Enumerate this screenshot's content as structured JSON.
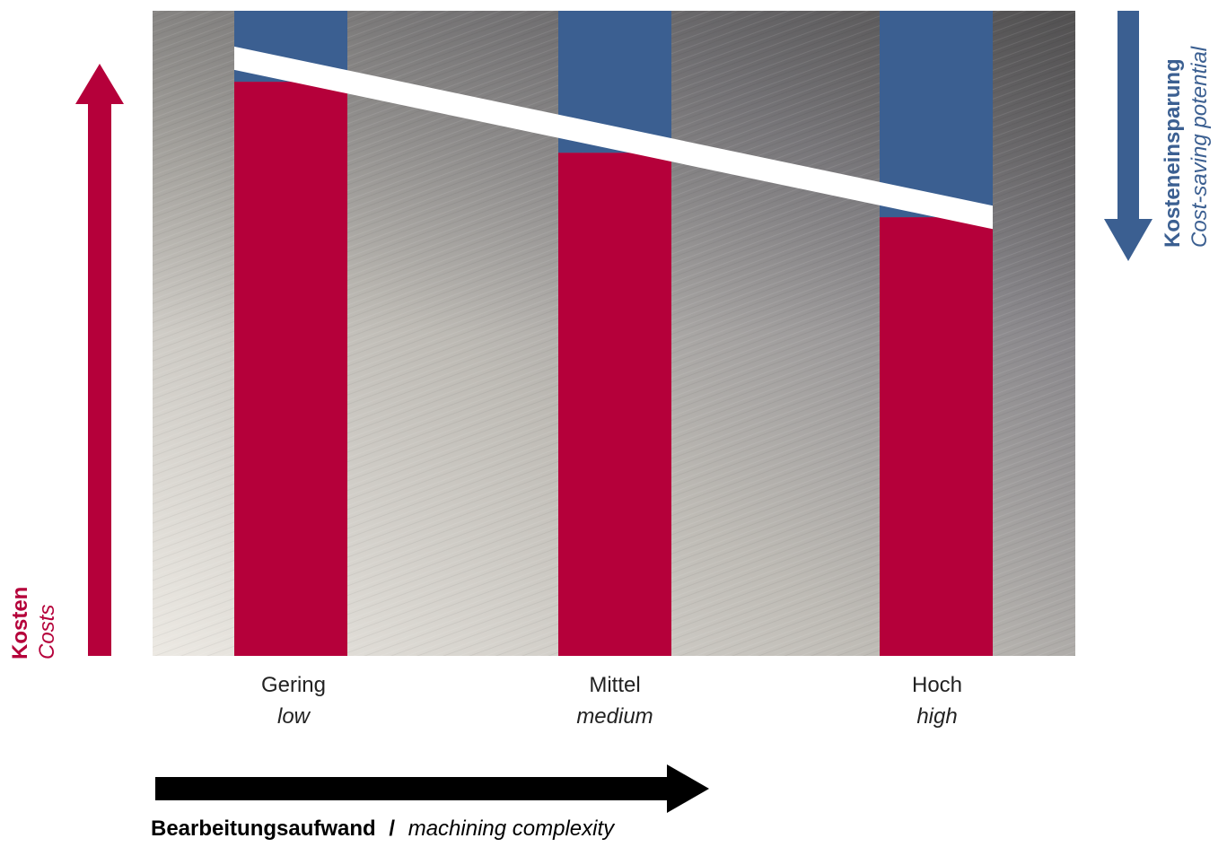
{
  "chart_data": {
    "type": "bar",
    "categories": [
      {
        "de": "Gering",
        "en": "low"
      },
      {
        "de": "Mittel",
        "en": "medium"
      },
      {
        "de": "Hoch",
        "en": "high"
      }
    ],
    "series": [
      {
        "key": "costs",
        "values": [
          89,
          78,
          68
        ],
        "color": "#b5003a"
      },
      {
        "key": "savings",
        "values": [
          11,
          22,
          32
        ],
        "color": "#3b5f91"
      }
    ],
    "ylim": [
      0,
      100
    ],
    "y_axis": {
      "label_de": "Kosten",
      "label_en": "Costs",
      "color": "#b5003a"
    },
    "saving_axis": {
      "label_de": "Kosteneinsparung",
      "label_en": "Cost-saving potential",
      "color": "#3b5f91"
    },
    "x_axis": {
      "label_de": "Bearbeitungsaufwand",
      "separator": "/",
      "label_en": "machining complexity",
      "color": "#000000"
    },
    "divider_color": "#ffffff",
    "grid": false,
    "legend": "none"
  }
}
